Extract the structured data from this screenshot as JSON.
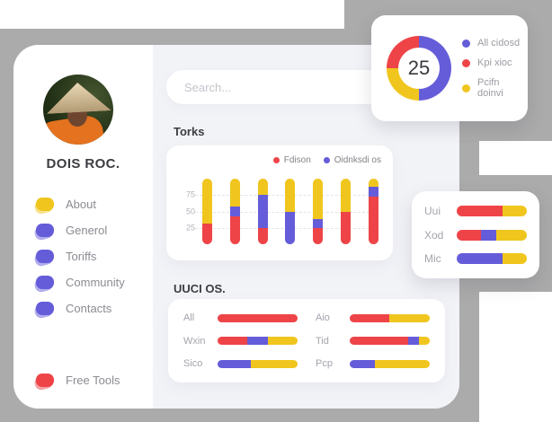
{
  "palette": {
    "red": "#ee4448",
    "blue": "#655cd9",
    "yellow": "#f0c61e",
    "gray_shape": "#ababab"
  },
  "sidebar": {
    "name": "DOIS ROC.",
    "items": [
      {
        "label": "About",
        "color": "yellow"
      },
      {
        "label": "Generol",
        "color": "blue"
      },
      {
        "label": "Toriffs",
        "color": "blue"
      },
      {
        "label": "Community",
        "color": "blue"
      },
      {
        "label": "Contacts",
        "color": "blue"
      }
    ],
    "footer_item": {
      "label": "Free Tools",
      "color": "red"
    }
  },
  "search": {
    "placeholder": "Search..."
  },
  "chart_data": [
    {
      "id": "donut",
      "type": "pie",
      "center_label": "25",
      "segments_clockwise_from_top": [
        {
          "color": "blue",
          "value": 50
        },
        {
          "color": "yellow",
          "value": 25
        },
        {
          "color": "red",
          "value": 25
        }
      ],
      "legend": [
        {
          "label": "All cidosd",
          "color": "blue"
        },
        {
          "label": "Kpi xioc",
          "color": "red"
        },
        {
          "label": "Pcifn doinvi",
          "color": "yellow"
        }
      ],
      "legend_position": "right"
    },
    {
      "id": "torks",
      "type": "bar",
      "orientation": "vertical",
      "title": "Torks",
      "stack_order": [
        "red",
        "blue",
        "yellow"
      ],
      "legend": [
        {
          "label": "Fdison",
          "color": "red"
        },
        {
          "label": "Oidnksdi os",
          "color": "blue"
        }
      ],
      "yticks": [
        75,
        50,
        25
      ],
      "ymax": 100,
      "grid": "dashed",
      "bars": [
        [
          31,
          0,
          69
        ],
        [
          43,
          15,
          42
        ],
        [
          24,
          52,
          24
        ],
        [
          0,
          49,
          51
        ],
        [
          24,
          14,
          62
        ],
        [
          49,
          0,
          51
        ],
        [
          72,
          16,
          12
        ]
      ]
    },
    {
      "id": "uuci",
      "type": "bar",
      "orientation": "horizontal",
      "title": "UUCI OS.",
      "rows": [
        {
          "label": "All",
          "segments": [
            [
              "red",
              100
            ]
          ]
        },
        {
          "label": "Wxin",
          "segments": [
            [
              "red",
              37
            ],
            [
              "blue",
              26
            ],
            [
              "yellow",
              37
            ]
          ]
        },
        {
          "label": "Sico",
          "segments": [
            [
              "blue",
              42
            ],
            [
              "yellow",
              58
            ]
          ]
        },
        {
          "label": "Aio",
          "segments": [
            [
              "red",
              49
            ],
            [
              "yellow",
              51
            ]
          ]
        },
        {
          "label": "Tid",
          "segments": [
            [
              "red",
              73
            ],
            [
              "blue",
              14
            ],
            [
              "yellow",
              13
            ]
          ]
        },
        {
          "label": "Pcp",
          "segments": [
            [
              "blue",
              31
            ],
            [
              "yellow",
              69
            ]
          ]
        }
      ]
    },
    {
      "id": "mini",
      "type": "bar",
      "orientation": "horizontal",
      "rows": [
        {
          "label": "Uui",
          "segments": [
            [
              "red",
              65
            ],
            [
              "yellow",
              35
            ]
          ]
        },
        {
          "label": "Xod",
          "segments": [
            [
              "red",
              35
            ],
            [
              "blue",
              22
            ],
            [
              "yellow",
              43
            ]
          ]
        },
        {
          "label": "Mic",
          "segments": [
            [
              "blue",
              65
            ],
            [
              "yellow",
              35
            ]
          ]
        }
      ]
    }
  ]
}
